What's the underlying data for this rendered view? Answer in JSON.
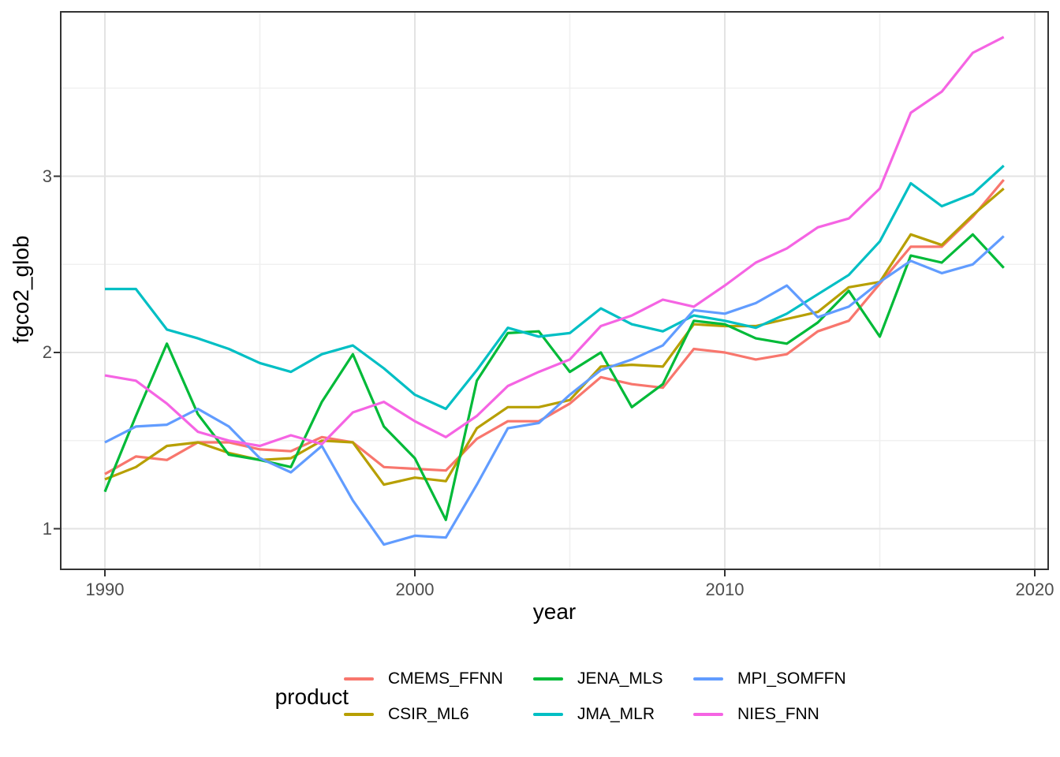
{
  "chart_data": {
    "type": "line",
    "title": "",
    "xlabel": "year",
    "ylabel": "fgco2_glob",
    "legend_title": "product",
    "legend_position": "bottom",
    "grid": true,
    "xlim": [
      1988.55,
      2020.45
    ],
    "ylim": [
      0.775,
      3.935
    ],
    "x_ticks": [
      1990,
      2000,
      2010,
      2020
    ],
    "x_tick_labels": [
      "1990",
      "2000",
      "2010",
      "2020"
    ],
    "x_minor_ticks": [
      1995,
      2005,
      2015
    ],
    "y_ticks": [
      1,
      2,
      3
    ],
    "y_tick_labels": [
      "1",
      "2",
      "3"
    ],
    "y_minor_ticks": [
      1.5,
      2.5,
      3.5
    ],
    "x": [
      1990,
      1991,
      1992,
      1993,
      1994,
      1995,
      1996,
      1997,
      1998,
      1999,
      2000,
      2001,
      2002,
      2003,
      2004,
      2005,
      2006,
      2007,
      2008,
      2009,
      2010,
      2011,
      2012,
      2013,
      2014,
      2015,
      2016,
      2017,
      2018,
      2019
    ],
    "series": [
      {
        "name": "CMEMS_FFNN",
        "color": "#F8766D",
        "values": [
          1.31,
          1.41,
          1.39,
          1.49,
          1.49,
          1.45,
          1.44,
          1.52,
          1.49,
          1.35,
          1.34,
          1.33,
          1.51,
          1.61,
          1.61,
          1.71,
          1.86,
          1.82,
          1.8,
          2.02,
          2.0,
          1.96,
          1.99,
          2.12,
          2.18,
          2.39,
          2.6,
          2.6,
          2.77,
          2.98
        ]
      },
      {
        "name": "CSIR_ML6",
        "color": "#B79F00",
        "values": [
          1.28,
          1.35,
          1.47,
          1.49,
          1.43,
          1.39,
          1.4,
          1.5,
          1.49,
          1.25,
          1.29,
          1.27,
          1.57,
          1.69,
          1.69,
          1.73,
          1.92,
          1.93,
          1.92,
          2.16,
          2.15,
          2.15,
          2.19,
          2.23,
          2.37,
          2.4,
          2.67,
          2.61,
          2.78,
          2.93
        ]
      },
      {
        "name": "JENA_MLS",
        "color": "#00BA38",
        "values": [
          1.21,
          1.64,
          2.05,
          1.65,
          1.42,
          1.39,
          1.35,
          1.72,
          1.99,
          1.58,
          1.4,
          1.05,
          1.84,
          2.11,
          2.12,
          1.89,
          2.0,
          1.69,
          1.82,
          2.18,
          2.16,
          2.08,
          2.05,
          2.17,
          2.35,
          2.09,
          2.55,
          2.51,
          2.67,
          2.48
        ]
      },
      {
        "name": "JMA_MLR",
        "color": "#00BFC4",
        "values": [
          2.36,
          2.36,
          2.13,
          2.08,
          2.02,
          1.94,
          1.89,
          1.99,
          2.04,
          1.91,
          1.76,
          1.68,
          1.9,
          2.14,
          2.09,
          2.11,
          2.25,
          2.16,
          2.12,
          2.21,
          2.18,
          2.14,
          2.22,
          2.33,
          2.44,
          2.63,
          2.96,
          2.83,
          2.9,
          3.06
        ]
      },
      {
        "name": "MPI_SOMFFN",
        "color": "#619CFF",
        "values": [
          1.49,
          1.58,
          1.59,
          1.68,
          1.58,
          1.4,
          1.32,
          1.47,
          1.16,
          0.91,
          0.96,
          0.95,
          1.25,
          1.57,
          1.6,
          1.76,
          1.9,
          1.96,
          2.04,
          2.24,
          2.22,
          2.28,
          2.38,
          2.2,
          2.26,
          2.4,
          2.52,
          2.45,
          2.5,
          2.66
        ]
      },
      {
        "name": "NIES_FNN",
        "color": "#F564E3",
        "values": [
          1.87,
          1.84,
          1.71,
          1.55,
          1.5,
          1.47,
          1.53,
          1.48,
          1.66,
          1.72,
          1.61,
          1.52,
          1.64,
          1.81,
          1.89,
          1.96,
          2.15,
          2.21,
          2.3,
          2.26,
          2.38,
          2.51,
          2.59,
          2.71,
          2.76,
          2.93,
          3.36,
          3.48,
          3.7,
          3.79
        ]
      }
    ],
    "style": {
      "panel_border": "#333333",
      "grid_major": "#e3e3e3",
      "grid_minor": "#f0f0f0",
      "tick_color": "#333333",
      "tick_text": "#4d4d4d",
      "background": "#ffffff"
    }
  }
}
